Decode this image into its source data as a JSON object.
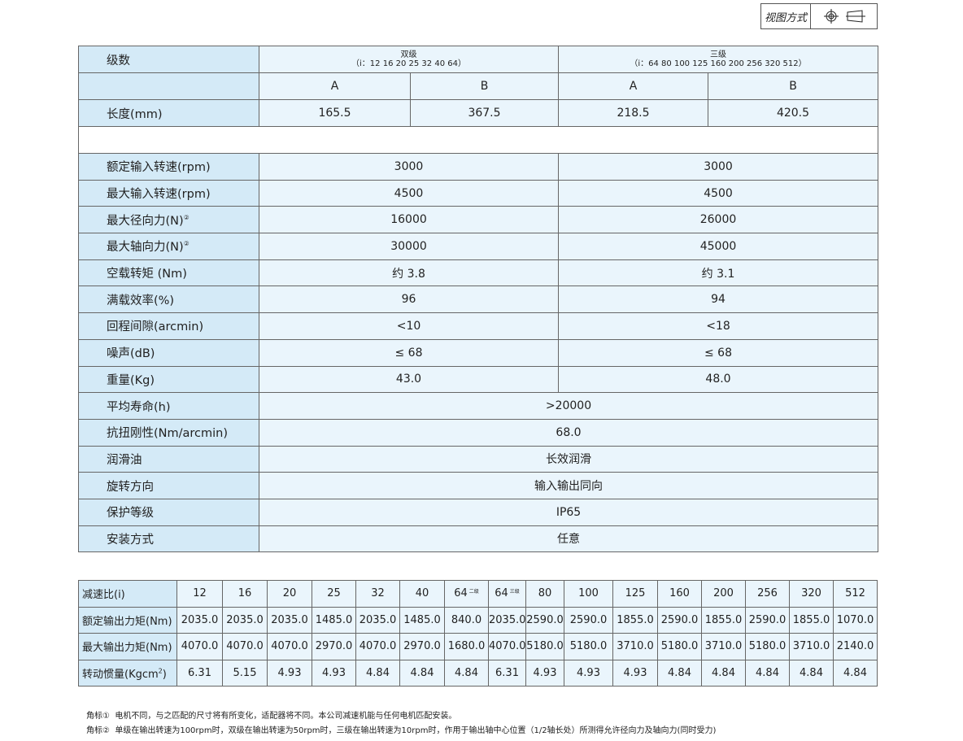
{
  "view": {
    "label": "视图方式",
    "icons": [
      "crosshair-circle-icon",
      "cone-projection-icon"
    ]
  },
  "main": {
    "header": {
      "label": "级数",
      "two_stage": {
        "title": "双级",
        "ratios": "（i：12 16 20 25 32 40 64）"
      },
      "three_stage": {
        "title": "三级",
        "ratios": "（i：64 80 100 125 160 200 256 320 512）"
      }
    },
    "variants": [
      "A",
      "B",
      "A",
      "B"
    ],
    "length": {
      "label": "长度(mm)",
      "values": [
        "165.5",
        "367.5",
        "218.5",
        "420.5"
      ]
    },
    "rows_split": [
      {
        "label": "额定输入转速(rpm)",
        "two": "3000",
        "three": "3000"
      },
      {
        "label": "最大输入转速(rpm)",
        "two": "4500",
        "three": "4500"
      },
      {
        "label": "最大径向力(N)",
        "mark": "②",
        "two": "16000",
        "three": "26000"
      },
      {
        "label": "最大轴向力(N)",
        "mark": "②",
        "two": "30000",
        "three": "45000"
      },
      {
        "label": "空载转矩 (Nm)",
        "two": "约 3.8",
        "three": "约 3.1"
      },
      {
        "label": "满载效率(%)",
        "two": "96",
        "three": "94"
      },
      {
        "label": "回程间隙(arcmin)",
        "two": "<10",
        "three": "<18"
      },
      {
        "label": "噪声(dB)",
        "two": "≤ 68",
        "three": "≤ 68"
      },
      {
        "label": "重量(Kg)",
        "two": "43.0",
        "three": "48.0"
      }
    ],
    "rows_full": [
      {
        "label": "平均寿命(h)",
        "value": ">20000"
      },
      {
        "label": "抗扭刚性(Nm/arcmin)",
        "value": "68.0"
      },
      {
        "label": "润滑油",
        "value": "长效润滑"
      },
      {
        "label": "旋转方向",
        "value": "输入输出同向"
      },
      {
        "label": "保护等级",
        "value": "IP65"
      },
      {
        "label": "安装方式",
        "value": "任意"
      }
    ]
  },
  "ratio": {
    "label": "减速比(i)",
    "values": [
      "12",
      "16",
      "20",
      "25",
      "32",
      "40",
      "64",
      "64",
      "80",
      "100",
      "125",
      "160",
      "200",
      "256",
      "320",
      "512"
    ],
    "tags": {
      "6": "二级",
      "7": "三级"
    },
    "rows": [
      {
        "label": "额定输出力矩(Nm)",
        "values": [
          "2035.0",
          "2035.0",
          "2035.0",
          "1485.0",
          "2035.0",
          "1485.0",
          "840.0",
          "2035.0",
          "2590.0",
          "2590.0",
          "1855.0",
          "2590.0",
          "1855.0",
          "2590.0",
          "1855.0",
          "1070.0"
        ]
      },
      {
        "label": "最大输出力矩(Nm)",
        "values": [
          "4070.0",
          "4070.0",
          "4070.0",
          "2970.0",
          "4070.0",
          "2970.0",
          "1680.0",
          "4070.0",
          "5180.0",
          "5180.0",
          "3710.0",
          "5180.0",
          "3710.0",
          "5180.0",
          "3710.0",
          "2140.0"
        ]
      },
      {
        "label": "转动惯量(Kgcm",
        "sup": "2",
        "label_end": ")",
        "values": [
          "6.31",
          "5.15",
          "4.93",
          "4.93",
          "4.84",
          "4.84",
          "4.84",
          "6.31",
          "4.93",
          "4.93",
          "4.93",
          "4.84",
          "4.84",
          "4.84",
          "4.84",
          "4.84"
        ]
      }
    ]
  },
  "notes": [
    {
      "mark": "角标①",
      "text": "电机不同，与之匹配的尺寸将有所变化，适配器将不同。本公司减速机能与任何电机匹配安装。"
    },
    {
      "mark": "角标②",
      "text": "单级在输出转速为100rpm时，双级在输出转速为50rpm时，三级在输出转速为10rpm时，作用于输出轴中心位置（1/2轴长处）所测得允许径向力及轴向力(同时受力)"
    }
  ]
}
